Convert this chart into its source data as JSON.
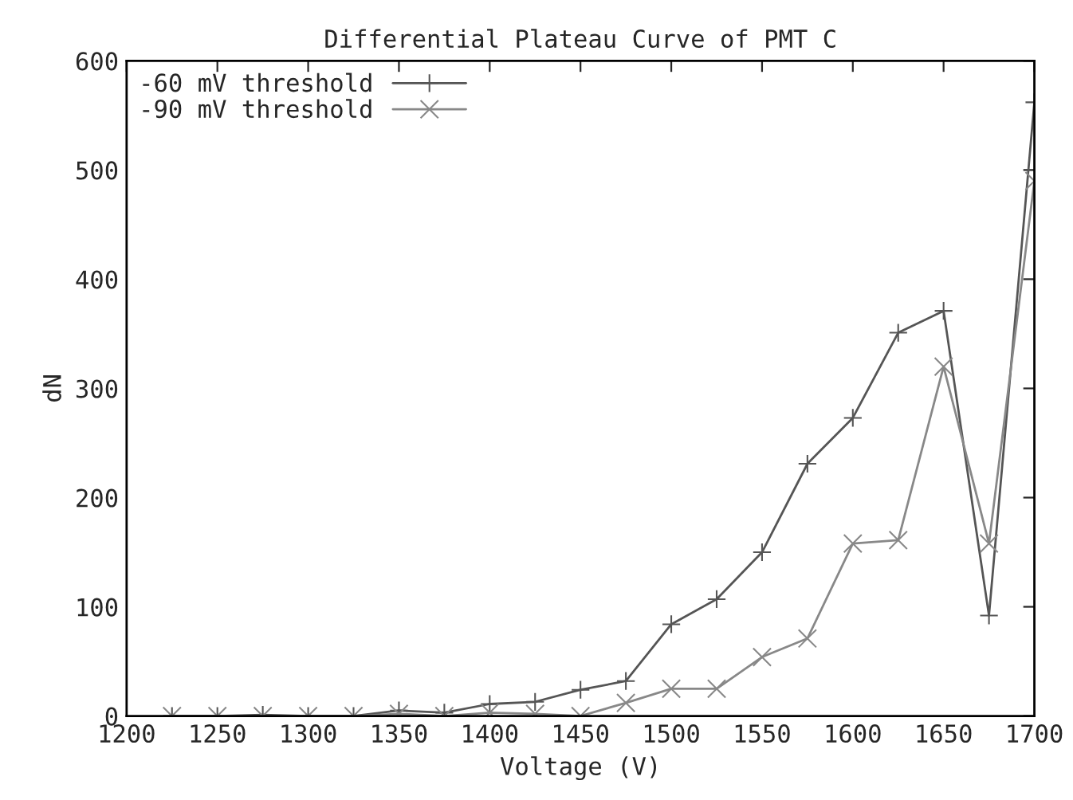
{
  "chart_data": {
    "type": "line",
    "title": "Differential Plateau Curve of PMT C",
    "xlabel": "Voltage (V)",
    "ylabel": "dN",
    "x": [
      1225,
      1250,
      1275,
      1300,
      1325,
      1350,
      1375,
      1400,
      1425,
      1450,
      1475,
      1500,
      1525,
      1550,
      1575,
      1600,
      1625,
      1650,
      1675,
      1700
    ],
    "series": [
      {
        "name": "-60 mV threshold",
        "color": "#555555",
        "marker": "plus",
        "values": [
          0,
          0,
          1,
          0,
          0,
          5,
          3,
          11,
          13,
          24,
          32,
          84,
          107,
          150,
          231,
          273,
          351,
          371,
          92,
          562
        ]
      },
      {
        "name": "-90 mV threshold",
        "color": "#888888",
        "marker": "cross",
        "values": [
          0,
          0,
          0,
          0,
          0,
          2,
          0,
          3,
          2,
          0,
          12,
          25,
          25,
          54,
          71,
          158,
          161,
          320,
          158,
          490
        ]
      }
    ],
    "xlim": [
      1200,
      1700
    ],
    "xticks": [
      1200,
      1250,
      1300,
      1350,
      1400,
      1450,
      1500,
      1550,
      1600,
      1650,
      1700
    ],
    "ylim": [
      0,
      600
    ],
    "yticks": [
      0,
      100,
      200,
      300,
      400,
      500,
      600
    ],
    "grid": false,
    "legend": "top left",
    "line_style": "solid"
  }
}
